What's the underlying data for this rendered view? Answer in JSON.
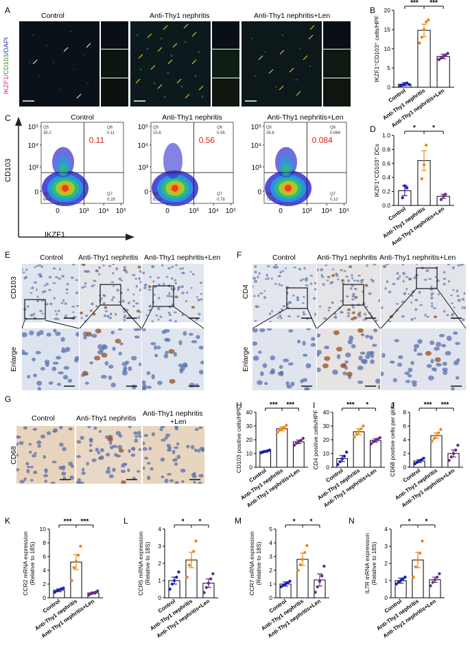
{
  "panels": {
    "A": "A",
    "B": "B",
    "C": "C",
    "D": "D",
    "E": "E",
    "F": "F",
    "G": "G",
    "H": "H",
    "I": "I",
    "J": "J",
    "K": "K",
    "L": "L",
    "M": "M",
    "N": "N"
  },
  "groups": [
    "Control",
    "Anti-Thy1 nephritis",
    "Anti-Thy1 nephritis+Len"
  ],
  "panelA": {
    "ylabel_parts": [
      "IKZF1",
      "/",
      "CD103",
      "/",
      "DAPI"
    ]
  },
  "panelC": {
    "titles": [
      "Control",
      "Anti-Thy1 nephritis",
      "Anti-Thy1 nephritis+Len"
    ],
    "ylabel": "CD103",
    "xlabel": "IKZF1",
    "yticks": [
      "10⁵",
      "10⁴",
      "10³",
      "0"
    ],
    "xticks": [
      "0",
      "10³",
      "10⁴",
      "10⁵"
    ],
    "plots": [
      {
        "q5": "Q5",
        "q5v": "35.2",
        "q6": "Q6",
        "q6v": "0.11",
        "big": "0.11",
        "q8": "Q8",
        "q8v": "64.4",
        "q7": "Q7",
        "q7v": "0.28"
      },
      {
        "q5": "Q5",
        "q5v": "15.6",
        "q6": "Q6",
        "q6v": "0.56",
        "big": "0.56",
        "q8": "Q8",
        "q8v": "83.0",
        "q7": "Q7",
        "q7v": "0.78"
      },
      {
        "q5": "Q5",
        "q5v": "26.8",
        "q6": "Q6",
        "q6v": "0.084",
        "big": "0.084",
        "q8": "Q8",
        "q8v": "73.1",
        "q7": "Q7",
        "q7v": "0.10"
      }
    ]
  },
  "panelE": {
    "ylabel_top": "CD103",
    "ylabel_bottom": "Enlarge"
  },
  "panelF": {
    "ylabel_top": "CD4",
    "ylabel_bottom": "Enlarge"
  },
  "panelG": {
    "ylabel": "CD68",
    "titles": [
      "Control",
      "Anti-Thy1 nephritis",
      "Anti-Thy1 nephritis",
      "+Len"
    ]
  },
  "colors": {
    "control": "#1f1fb4",
    "nephritis": "#e8891a",
    "len": "#6a2a8a",
    "red": "#d62020"
  },
  "chart_data": [
    {
      "id": "B",
      "type": "bar",
      "ylabel": "IKZF1⁺CD103⁺ cells/HPF",
      "ylim": [
        0,
        20
      ],
      "yticks": [
        "0",
        "5",
        "10",
        "15",
        "20"
      ],
      "categories": [
        "Control",
        "Anti-Thy1 nephritis",
        "Anti-Thy1 nephritis+Len"
      ],
      "values": [
        0.8,
        14.8,
        8
      ],
      "errors": [
        0.4,
        1.6,
        0.6
      ],
      "points": [
        [
          0.3,
          0.6,
          0.9,
          1.1,
          0.7
        ],
        [
          11.5,
          13,
          15,
          17,
          17.5
        ],
        [
          7.2,
          7.6,
          8,
          8.4,
          8.8
        ]
      ],
      "sig": [
        "***",
        "***"
      ]
    },
    {
      "id": "D",
      "type": "bar",
      "ylabel": "IKZF1⁺CD103⁺ DCs",
      "ylim": [
        0,
        1.0
      ],
      "yticks": [
        "0.0",
        "0.2",
        "0.4",
        "0.6",
        "0.8",
        "1.0"
      ],
      "categories": [
        "Control",
        "Anti-Thy1 nephritis",
        "Anti-Thy1 nephritis+Len"
      ],
      "values": [
        0.21,
        0.64,
        0.13
      ],
      "errors": [
        0.07,
        0.14,
        0.03
      ],
      "points": [
        [
          0.11,
          0.28,
          0.25
        ],
        [
          0.38,
          0.58,
          0.86
        ],
        [
          0.084,
          0.13,
          0.16
        ]
      ],
      "sig": [
        "*",
        "*"
      ]
    },
    {
      "id": "H",
      "type": "bar",
      "ylabel": "CD103 positive cells/HPF",
      "ylim": [
        0,
        40
      ],
      "yticks": [
        "0",
        "10",
        "20",
        "30",
        "40"
      ],
      "categories": [
        "Control",
        "Anti-Thy1 nephritis",
        "Anti-Thy1 nephritis+Len"
      ],
      "values": [
        11.5,
        28,
        18.5
      ],
      "errors": [
        0.6,
        1.5,
        1.3
      ],
      "points": [
        [
          10.5,
          11,
          11.5,
          12,
          12.5
        ],
        [
          25.5,
          27,
          28,
          29,
          30.5
        ],
        [
          16,
          17.5,
          18.5,
          19.5,
          21
        ]
      ],
      "sig": [
        "***",
        "***"
      ]
    },
    {
      "id": "I",
      "type": "bar",
      "ylabel": "CD4 positive cells/HPF",
      "ylim": [
        0,
        40
      ],
      "yticks": [
        "0",
        "10",
        "20",
        "30",
        "40"
      ],
      "categories": [
        "Control",
        "Anti-Thy1 nephritis",
        "Anti-Thy1 nephritis+Len"
      ],
      "values": [
        6.3,
        25.8,
        19.5
      ],
      "errors": [
        2.2,
        2.2,
        1.2
      ],
      "points": [
        [
          2,
          4,
          6,
          8,
          11
        ],
        [
          22,
          24,
          26,
          28,
          30
        ],
        [
          17,
          18.5,
          19.5,
          20.5,
          21.5
        ]
      ],
      "sig": [
        "***",
        "*"
      ]
    },
    {
      "id": "J",
      "type": "bar",
      "ylabel": "CD68 positive cells per glom",
      "ylim": [
        0,
        8
      ],
      "yticks": [
        "0",
        "2",
        "4",
        "6",
        "8"
      ],
      "categories": [
        "Control",
        "Anti-Thy1 nephritis",
        "Anti-Thy1 nephritis+Len"
      ],
      "values": [
        0.9,
        4.6,
        2.0
      ],
      "errors": [
        0.2,
        0.4,
        0.5
      ],
      "points": [
        [
          0.5,
          0.7,
          0.9,
          1.1,
          1.3
        ],
        [
          3.8,
          4.2,
          4.6,
          5.0,
          5.5
        ],
        [
          1.0,
          1.5,
          2.0,
          2.5,
          3.2
        ]
      ],
      "sig": [
        "***",
        "***"
      ]
    },
    {
      "id": "K",
      "type": "bar",
      "ylabel": "CCR2 mRNA expression (Relative to 18S)",
      "ylim": [
        0,
        10
      ],
      "yticks": [
        "0",
        "2",
        "4",
        "6",
        "8",
        "10"
      ],
      "categories": [
        "Control",
        "Anti-Thy1 nephritis",
        "Anti-Thy1 nephritis+Len"
      ],
      "values": [
        1.1,
        5.2,
        0.7
      ],
      "errors": [
        0.2,
        1.1,
        0.15
      ],
      "points": [
        [
          0.8,
          1.0,
          1.1,
          1.3,
          1.4
        ],
        [
          2.5,
          4.4,
          5.3,
          6.2,
          7.5
        ],
        [
          0.4,
          0.6,
          0.7,
          0.8,
          1.0
        ]
      ],
      "sig": [
        "***",
        "***"
      ]
    },
    {
      "id": "L",
      "type": "bar",
      "ylabel": "CCR5 mRNA expression (Relative to 18S)",
      "ylim": [
        0,
        4
      ],
      "yticks": [
        "0",
        "1",
        "2",
        "3",
        "4"
      ],
      "categories": [
        "Control",
        "Anti-Thy1 nephritis",
        "Anti-Thy1 nephritis+Len"
      ],
      "values": [
        1.0,
        2.2,
        0.85
      ],
      "errors": [
        0.2,
        0.45,
        0.25
      ],
      "points": [
        [
          0.5,
          0.8,
          1.0,
          1.2,
          1.5
        ],
        [
          1.2,
          1.9,
          2.2,
          2.7,
          3.3
        ],
        [
          0.3,
          0.6,
          0.85,
          1.1,
          1.4
        ]
      ],
      "sig": [
        "*",
        "*"
      ]
    },
    {
      "id": "M",
      "type": "bar",
      "ylabel": "CCR7 mRNA expression (Relative to 18S)",
      "ylim": [
        0,
        5
      ],
      "yticks": [
        "0",
        "1",
        "2",
        "3",
        "4",
        "5"
      ],
      "categories": [
        "Control",
        "Anti-Thy1 nephritis",
        "Anti-Thy1 nephritis+Len"
      ],
      "values": [
        1.0,
        2.8,
        1.3
      ],
      "errors": [
        0.15,
        0.45,
        0.45
      ],
      "points": [
        [
          0.8,
          0.9,
          1.0,
          1.1,
          1.2
        ],
        [
          2.0,
          2.4,
          2.8,
          3.3,
          3.8
        ],
        [
          0.4,
          0.8,
          1.2,
          1.6,
          2.3
        ]
      ],
      "sig": [
        "*",
        "*"
      ]
    },
    {
      "id": "N",
      "type": "bar",
      "ylabel": "IL7R mRNA expression (Relative to 18S)",
      "ylim": [
        0,
        4
      ],
      "yticks": [
        "0",
        "1",
        "2",
        "3",
        "4"
      ],
      "categories": [
        "Control",
        "Anti-Thy1 nephritis",
        "Anti-Thy1 nephritis+Len"
      ],
      "values": [
        1.0,
        2.2,
        1.05
      ],
      "errors": [
        0.15,
        0.45,
        0.15
      ],
      "points": [
        [
          0.8,
          0.9,
          1.0,
          1.1,
          1.2
        ],
        [
          1.2,
          1.8,
          2.2,
          2.6,
          3.3
        ],
        [
          0.7,
          0.9,
          1.05,
          1.2,
          1.4
        ]
      ],
      "sig": [
        "*",
        "*"
      ]
    }
  ]
}
